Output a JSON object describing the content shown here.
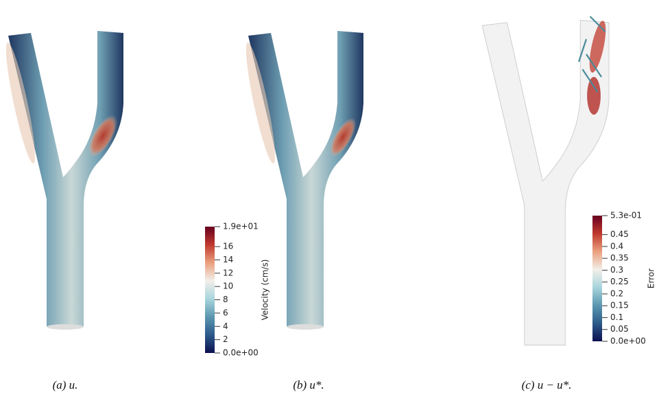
{
  "panels": [
    {
      "caption": "(a) u."
    },
    {
      "caption": "(b) u*."
    },
    {
      "caption": "(c) u − u*."
    }
  ],
  "colormap": [
    "#0b0f4f",
    "#2c5a8a",
    "#5b97b0",
    "#a8d5dd",
    "#f2efe9",
    "#eaa07e",
    "#c0392e",
    "#67001f"
  ],
  "colorbars": [
    {
      "title": "Velocity (cm/s)",
      "range": [
        0,
        19
      ],
      "ticks": [
        {
          "value": 0,
          "label": "0.0e+00"
        },
        2,
        4,
        6,
        8,
        10,
        12,
        14,
        16,
        {
          "value": 19,
          "label": "1.9e+01"
        }
      ]
    },
    {
      "title": "Error",
      "range": [
        0,
        0.53
      ],
      "ticks": [
        {
          "value": 0,
          "label": "0.0e+00"
        },
        0.05,
        0.1,
        0.15,
        0.2,
        0.25,
        0.3,
        0.35,
        0.4,
        0.45,
        {
          "value": 0.53,
          "label": "5.3e-01"
        }
      ]
    }
  ]
}
